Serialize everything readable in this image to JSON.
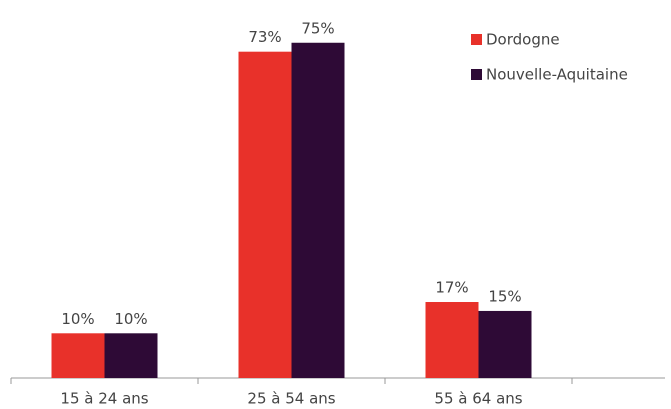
{
  "chart_data": {
    "type": "bar",
    "categories": [
      "15 à 24 ans",
      "25 à 54 ans",
      "55 à 64 ans"
    ],
    "series": [
      {
        "name": "Dordogne",
        "color": "#e8312a",
        "values": [
          10,
          73,
          17
        ],
        "value_labels": [
          "10%",
          "73%",
          "17%"
        ]
      },
      {
        "name": "Nouvelle-Aquitaine",
        "color": "#2e0a36",
        "values": [
          10,
          75,
          15
        ],
        "value_labels": [
          "10%",
          "75%",
          "15%"
        ]
      }
    ],
    "legend": "top-right"
  }
}
